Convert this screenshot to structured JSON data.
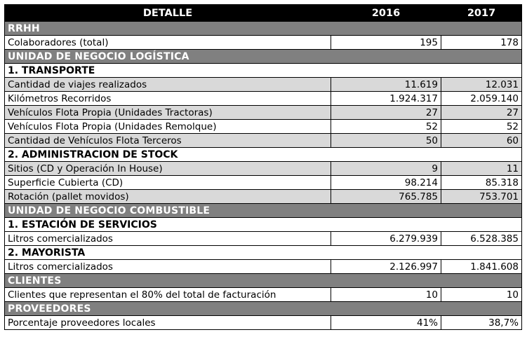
{
  "header": {
    "col_label": "DETALLE",
    "col_year_1": "2016",
    "col_year_2": "2017"
  },
  "rows": [
    {
      "kind": "section",
      "label": "RRHH"
    },
    {
      "kind": "data",
      "label": "Colaboradores (total)",
      "v2016": "195",
      "v2017": "178",
      "indent": false,
      "shade": false
    },
    {
      "kind": "section",
      "label": "UNIDAD DE NEGOCIO LOGÍSTICA"
    },
    {
      "kind": "sub",
      "label": "1.  TRANSPORTE"
    },
    {
      "kind": "data",
      "label": "Cantidad de viajes realizados",
      "v2016": "11.619",
      "v2017": "12.031",
      "indent": true,
      "shade": true
    },
    {
      "kind": "data",
      "label": "Kilómetros Recorridos",
      "v2016": "1.924.317",
      "v2017": "2.059.140",
      "indent": true,
      "shade": false
    },
    {
      "kind": "data",
      "label": "Vehículos Flota Propia (Unidades Tractoras)",
      "v2016": "27",
      "v2017": "27",
      "indent": true,
      "shade": true
    },
    {
      "kind": "data",
      "label": "Vehículos Flota Propia (Unidades Remolque)",
      "v2016": "52",
      "v2017": "52",
      "indent": true,
      "shade": false
    },
    {
      "kind": "data",
      "label": "Cantidad de Vehículos Flota Terceros",
      "v2016": "50",
      "v2017": "60",
      "indent": true,
      "shade": true
    },
    {
      "kind": "sub",
      "label": "2.  ADMINISTRACION DE STOCK"
    },
    {
      "kind": "data",
      "label": "Sitios (CD y Operación In House)",
      "v2016": "9",
      "v2017": "11",
      "indent": true,
      "shade": true
    },
    {
      "kind": "data",
      "label": "Superficie Cubierta (CD)",
      "v2016": "98.214",
      "v2017": "85.318",
      "indent": true,
      "shade": false
    },
    {
      "kind": "data",
      "label": "Rotación (pallet movidos)",
      "v2016": "765.785",
      "v2017": "753.701",
      "indent": true,
      "shade": true
    },
    {
      "kind": "section",
      "label": "UNIDAD DE NEGOCIO COMBUSTIBLE"
    },
    {
      "kind": "sub",
      "label": "1.  ESTACIÓN DE SERVICIOS"
    },
    {
      "kind": "data",
      "label": "Litros comercializados",
      "v2016": "6.279.939",
      "v2017": "6.528.385",
      "indent": true,
      "shade": false
    },
    {
      "kind": "sub",
      "label": "2.  MAYORISTA"
    },
    {
      "kind": "data",
      "label": "Litros comercializados",
      "v2016": "2.126.997",
      "v2017": "1.841.608",
      "indent": true,
      "shade": false
    },
    {
      "kind": "section",
      "label": "CLIENTES"
    },
    {
      "kind": "data",
      "label": "Clientes que representan el 80% del total de facturación",
      "v2016": "10",
      "v2017": "10",
      "indent": false,
      "shade": false
    },
    {
      "kind": "section",
      "label": "PROVEEDORES"
    },
    {
      "kind": "data",
      "label": "Porcentaje proveedores locales",
      "v2016": "41%",
      "v2017": "38,7%",
      "indent": false,
      "shade": false
    }
  ]
}
